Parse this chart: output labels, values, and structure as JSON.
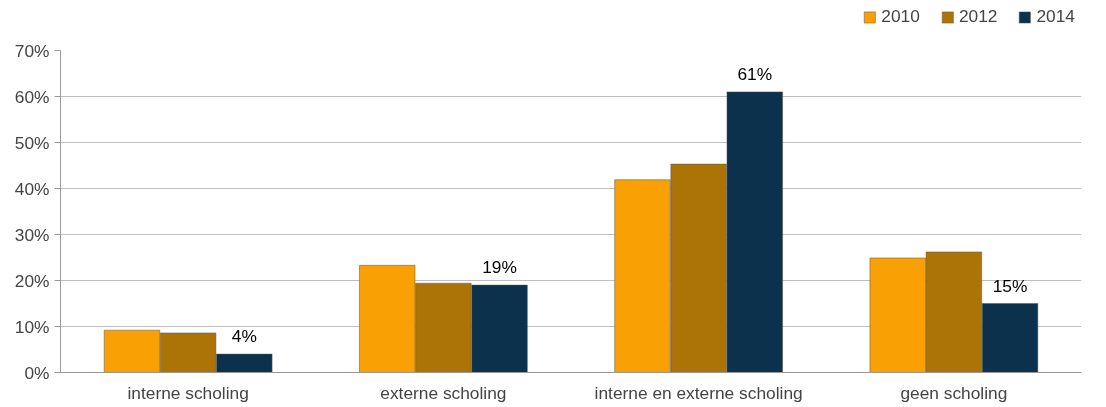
{
  "chart_data": {
    "type": "bar",
    "categories": [
      "interne scholing",
      "externe scholing",
      "interne en externe scholing",
      "geen scholing"
    ],
    "series": [
      {
        "name": "2010",
        "color": "#f9a004",
        "values": [
          9.2,
          23.3,
          41.9,
          24.9
        ]
      },
      {
        "name": "2012",
        "color": "#ac7306",
        "values": [
          8.6,
          19.4,
          45.3,
          26.2
        ]
      },
      {
        "name": "2014",
        "color": "#0b314d",
        "values": [
          4,
          19,
          61,
          15
        ],
        "value_labels": [
          "4%",
          "19%",
          "61%",
          "15%"
        ]
      }
    ],
    "ylim": [
      0,
      70
    ],
    "yticks": [
      {
        "value": 0,
        "label": "0%"
      },
      {
        "value": 10,
        "label": "10%"
      },
      {
        "value": 20,
        "label": "20%"
      },
      {
        "value": 30,
        "label": "30%"
      },
      {
        "value": 40,
        "label": "40%"
      },
      {
        "value": 50,
        "label": "50%"
      },
      {
        "value": 60,
        "label": "60%"
      },
      {
        "value": 70,
        "label": "70%"
      }
    ],
    "grid": "y",
    "legend": "top right"
  }
}
